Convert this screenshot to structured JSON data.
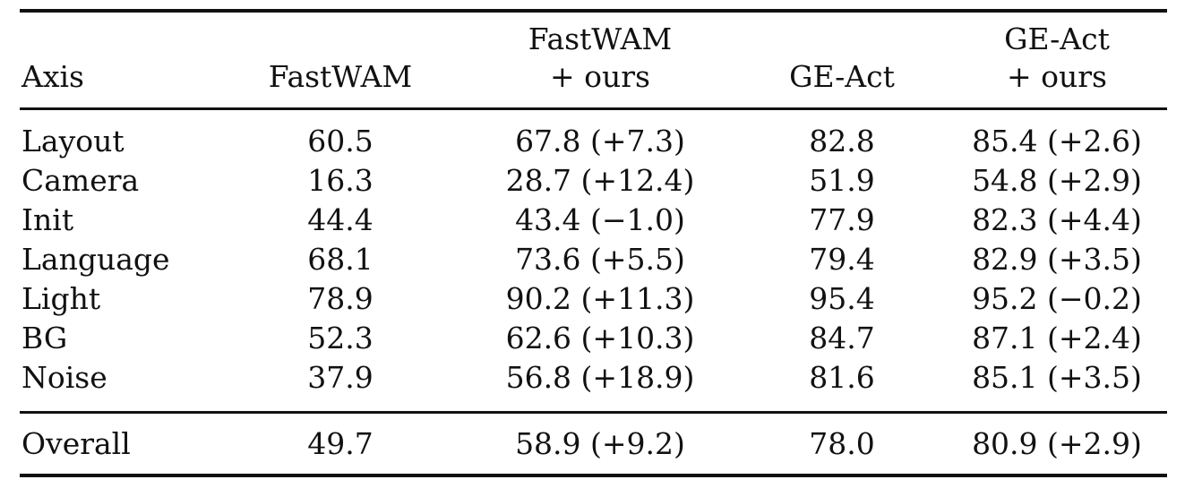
{
  "header": {
    "axis": "Axis",
    "fastwam": "FastWAM",
    "fastwam_ours_line1": "FastWAM",
    "fastwam_ours_line2": "+ ours",
    "geact": "GE-Act",
    "geact_ours_line1": "GE-Act",
    "geact_ours_line2": "+ ours"
  },
  "rows": [
    {
      "axis": "Layout",
      "fastwam": "60.5",
      "fastwam_ours": "67.8 (+7.3)",
      "geact": "82.8",
      "geact_ours": "85.4 (+2.6)"
    },
    {
      "axis": "Camera",
      "fastwam": "16.3",
      "fastwam_ours": "28.7 (+12.4)",
      "geact": "51.9",
      "geact_ours": "54.8 (+2.9)"
    },
    {
      "axis": "Init",
      "fastwam": "44.4",
      "fastwam_ours": "43.4 (−1.0)",
      "geact": "77.9",
      "geact_ours": "82.3 (+4.4)"
    },
    {
      "axis": "Language",
      "fastwam": "68.1",
      "fastwam_ours": "73.6 (+5.5)",
      "geact": "79.4",
      "geact_ours": "82.9 (+3.5)"
    },
    {
      "axis": "Light",
      "fastwam": "78.9",
      "fastwam_ours": "90.2 (+11.3)",
      "geact": "95.4",
      "geact_ours": "95.2 (−0.2)"
    },
    {
      "axis": "BG",
      "fastwam": "52.3",
      "fastwam_ours": "62.6 (+10.3)",
      "geact": "84.7",
      "geact_ours": "87.1 (+2.4)"
    },
    {
      "axis": "Noise",
      "fastwam": "37.9",
      "fastwam_ours": "56.8 (+18.9)",
      "geact": "81.6",
      "geact_ours": "85.1 (+3.5)"
    }
  ],
  "overall": {
    "axis": "Overall",
    "fastwam": "49.7",
    "fastwam_ours": "58.9 (+9.2)",
    "geact": "78.0",
    "geact_ours": "80.9 (+2.9)"
  }
}
